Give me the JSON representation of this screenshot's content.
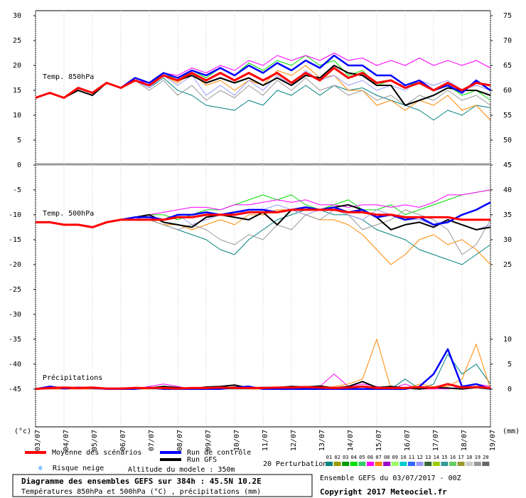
{
  "chart_data": {
    "type": "line",
    "panel_labels": [
      "Temp. 850hPa",
      "Temp. 500hPa",
      "Précipitations"
    ],
    "y_unit": "(°c)",
    "y2_unit": "(mm)",
    "categories": [
      "03/07",
      null,
      "04/07",
      null,
      "05/07",
      null,
      "06/07",
      null,
      "07/07",
      null,
      "08/07",
      null,
      "09/07",
      null,
      "10/07",
      null,
      "11/07",
      null,
      "12/07",
      null,
      "13/07",
      null,
      "14/07",
      null,
      "15/07",
      null,
      "16/07",
      null,
      "17/07",
      null,
      "18/07",
      null,
      "19/07"
    ],
    "ylim": [
      -52.6,
      31
    ],
    "yticks": [
      30,
      25,
      20,
      15,
      10,
      5,
      0,
      -5,
      -10,
      -15,
      -20,
      -25,
      -30,
      -35,
      -40,
      -45
    ],
    "y2lim": [
      -7.6,
      76
    ],
    "y2ticks": [
      75,
      70,
      65,
      60,
      55,
      50,
      45,
      40,
      35,
      30,
      25,
      10,
      5,
      0
    ],
    "grid": true,
    "series": [
      {
        "name": "Moyenne des scénarios",
        "color": "#ff0000",
        "values_850": [
          13.5,
          14.5,
          13.5,
          15.5,
          14.5,
          16.5,
          15.5,
          17,
          16,
          18,
          17,
          18.5,
          17,
          18.5,
          17,
          18.5,
          17,
          18.5,
          16.5,
          18.5,
          17,
          19.5,
          17.5,
          18.5,
          16.5,
          17,
          15.5,
          16.5,
          15,
          16.5,
          15,
          16.5,
          16
        ],
        "values_500": [
          -11.5,
          -11.5,
          -12,
          -12,
          -12.5,
          -11.5,
          -11,
          -11,
          -11,
          -11,
          -10.5,
          -10.5,
          -10,
          -10,
          -10,
          -9.5,
          -9.5,
          -9.5,
          -9,
          -9,
          -9,
          -9,
          -9.5,
          -9.5,
          -10,
          -10,
          -10.5,
          -10.5,
          -10.5,
          -10.5,
          -11,
          -11,
          -11
        ],
        "precip": [
          0,
          0.2,
          0.3,
          0.2,
          0.3,
          0.1,
          0.1,
          0.2,
          0.2,
          0.2,
          0.1,
          0.2,
          0.2,
          0.3,
          0.2,
          0.2,
          0.2,
          0.3,
          0.3,
          0.4,
          0.3,
          0.2,
          0.3,
          0.5,
          0.2,
          0.2,
          0.2,
          0.4,
          0.2,
          1,
          0.3,
          0.4,
          0.2
        ]
      },
      {
        "name": "Run de contrôle",
        "color": "#0000ff",
        "values_850": [
          13.5,
          14.5,
          13.5,
          15.5,
          14.5,
          16.5,
          15.5,
          17.5,
          16.5,
          18.5,
          17.5,
          19,
          18,
          19.5,
          18,
          20,
          18.5,
          20.5,
          19,
          21,
          19.5,
          22,
          20,
          20,
          18,
          18,
          16,
          17,
          15,
          16,
          14.5,
          17,
          15
        ],
        "values_500": [
          -11.5,
          -11.5,
          -12,
          -12,
          -12.5,
          -11.5,
          -11,
          -10.5,
          -10.5,
          -11,
          -10,
          -10,
          -9.5,
          -10,
          -9.5,
          -9,
          -9,
          -9.5,
          -9,
          -8.5,
          -9,
          -8.5,
          -9.5,
          -9,
          -10.5,
          -10,
          -11,
          -10.5,
          -12,
          -11.5,
          -10,
          -9,
          -7.5
        ],
        "precip": [
          0,
          0.5,
          0.1,
          0.3,
          0.2,
          0,
          0,
          0,
          0.3,
          0,
          0,
          0,
          0,
          0,
          0.3,
          0.5,
          0,
          0,
          0,
          0,
          0,
          0,
          0,
          0,
          0,
          0,
          0,
          0.5,
          3,
          8,
          0.5,
          1,
          0
        ]
      },
      {
        "name": "Run GFS",
        "color": "#000000",
        "values_850": [
          13.5,
          14.5,
          13.5,
          15,
          14,
          16.5,
          15.5,
          17,
          16,
          18,
          17,
          18,
          16.5,
          17.5,
          16.5,
          17.5,
          16,
          17.5,
          16,
          18,
          17.5,
          20,
          18.5,
          18,
          16,
          16,
          12,
          13,
          14,
          15.5,
          15,
          15,
          14
        ],
        "values_500": [
          -11.5,
          -11.5,
          -12,
          -12,
          -12.5,
          -11.5,
          -11,
          -10.5,
          -10,
          -11.5,
          -12,
          -12.5,
          -10.5,
          -10,
          -10.5,
          -11,
          -9.5,
          -12,
          -9,
          -9,
          -9,
          -8.5,
          -8,
          -9,
          -10.5,
          -13,
          -12,
          -11.5,
          -12.5,
          -11,
          -12,
          -13,
          -12.5
        ],
        "precip": [
          0,
          0.3,
          0.2,
          0.3,
          0.2,
          0,
          0,
          0.3,
          0.2,
          0.5,
          0.3,
          0,
          0.4,
          0.5,
          0.8,
          0.2,
          0.3,
          0.3,
          0.5,
          0.4,
          0.6,
          0.2,
          0.5,
          1.5,
          0.3,
          0.5,
          0.2,
          0,
          0.3,
          0.2,
          0,
          0.3,
          0
        ]
      }
    ],
    "perturbations": {
      "label": "20 Perturbations",
      "members": [
        {
          "name": "01",
          "color": "#008080",
          "values_850": [
            13.5,
            14.5,
            13.5,
            15.5,
            14.5,
            16.5,
            15.5,
            17,
            15.5,
            17.5,
            15,
            14,
            12,
            11.5,
            11,
            13,
            12,
            15,
            14,
            16,
            14,
            16,
            15,
            15.5,
            14,
            13,
            12,
            11,
            9,
            11,
            10,
            12,
            11.5
          ],
          "values_500": [
            -11.5,
            -11.5,
            -12,
            -12,
            -12.5,
            -11.5,
            -11,
            -11,
            -11,
            -12,
            -13,
            -14,
            -15,
            -17,
            -18,
            -15,
            -13,
            -11,
            -10,
            -9,
            -9,
            -10,
            -10,
            -11,
            -13,
            -14,
            -15,
            -17,
            -18,
            -19,
            -20,
            -18,
            -16
          ],
          "precip": [
            0,
            0,
            0,
            0,
            0,
            0,
            0,
            0,
            0,
            0,
            0,
            0,
            0,
            0,
            0,
            0,
            0,
            0,
            0,
            0,
            0,
            0,
            0,
            0,
            0,
            0,
            2,
            0,
            1,
            7,
            3,
            5,
            1
          ]
        },
        {
          "name": "02",
          "color": "#999900"
        },
        {
          "name": "03",
          "color": "#009900"
        },
        {
          "name": "04",
          "color": "#00dd00",
          "values_850": [
            13.5,
            14.5,
            13.5,
            15.5,
            14.5,
            16.5,
            15.5,
            17,
            16,
            18.5,
            17,
            19,
            17.5,
            19.5,
            18,
            20.5,
            19,
            21,
            20,
            22,
            20,
            21,
            18,
            19,
            16,
            17,
            15.5,
            17,
            15,
            16,
            14,
            15,
            13
          ],
          "values_500": [
            -11.5,
            -11.5,
            -12,
            -12,
            -12.5,
            -11.5,
            -11,
            -11,
            -10,
            -10,
            -11,
            -10,
            -9,
            -9,
            -8,
            -7,
            -6,
            -7,
            -6,
            -8,
            -9,
            -8,
            -7,
            -9,
            -9,
            -8,
            -10,
            -9,
            -8,
            -7,
            -6,
            -5.5,
            -5
          ]
        },
        {
          "name": "05",
          "color": "#33cc66"
        },
        {
          "name": "06",
          "color": "#ff00ff",
          "values_850": [
            13.5,
            14.5,
            13.5,
            15.5,
            14.5,
            16.5,
            15.5,
            17,
            16.5,
            18.5,
            18,
            19.5,
            18.5,
            20,
            19,
            21,
            20,
            22,
            21,
            22,
            21,
            22.5,
            21,
            21.5,
            20,
            21,
            20,
            21.5,
            20,
            21,
            20,
            21,
            19.5
          ],
          "values_500": [
            -11.5,
            -11.5,
            -12,
            -12,
            -12.5,
            -11.5,
            -11,
            -11,
            -10,
            -9.5,
            -9,
            -8.5,
            -8.5,
            -9,
            -8,
            -8,
            -7.5,
            -7,
            -7.5,
            -7,
            -8,
            -8,
            -8.5,
            -8,
            -8,
            -8.5,
            -8,
            -8.5,
            -7.5,
            -6,
            -6,
            -5.5,
            -5
          ],
          "precip": [
            0,
            0,
            0,
            0,
            0,
            0,
            0,
            0,
            0.5,
            1,
            0.5,
            0,
            0,
            0,
            0.5,
            0.3,
            0,
            0,
            0.5,
            0,
            0.5,
            3,
            0.5,
            1,
            0.5,
            0,
            1,
            0,
            0,
            0,
            0.5,
            1,
            0.5
          ]
        },
        {
          "name": "07",
          "color": "#ff8800",
          "values_850": [
            13.5,
            14.5,
            13.5,
            15.5,
            14.5,
            16.5,
            15.5,
            17,
            16,
            18,
            16.5,
            18.5,
            16,
            17,
            15,
            17,
            16,
            19,
            18,
            20,
            17.5,
            18,
            15,
            15,
            12,
            13,
            11,
            13,
            12,
            14,
            11,
            12,
            9
          ],
          "values_500": [
            -11.5,
            -11.5,
            -12,
            -12,
            -12.5,
            -11.5,
            -11,
            -11,
            -11,
            -12,
            -12,
            -13,
            -12,
            -11,
            -12,
            -10,
            -10,
            -9,
            -9,
            -10,
            -11,
            -11,
            -12,
            -14,
            -17,
            -20,
            -18,
            -15,
            -14,
            -16,
            -15,
            -17,
            -20
          ],
          "precip": [
            0,
            0,
            0,
            0,
            0,
            0,
            0,
            0,
            0,
            0.5,
            0,
            0,
            0,
            0,
            0.5,
            0,
            0,
            0,
            0,
            0.5,
            0,
            0.5,
            1,
            2,
            10,
            0,
            0,
            1,
            0.5,
            0.5,
            2,
            9,
            0
          ]
        },
        {
          "name": "08",
          "color": "#9900cc"
        },
        {
          "name": "09",
          "color": "#99ff66"
        },
        {
          "name": "10",
          "color": "#00cccc"
        },
        {
          "name": "11",
          "color": "#3366ff"
        },
        {
          "name": "12",
          "color": "#9999ff",
          "values_850": [
            13.5,
            14.5,
            13.5,
            15.5,
            14.5,
            16.5,
            15.5,
            17,
            15.5,
            18,
            16,
            18,
            14,
            16,
            14,
            17,
            15,
            18,
            16,
            19,
            17,
            18,
            16,
            17,
            15,
            16,
            15,
            17,
            16,
            17,
            15,
            16,
            15
          ],
          "values_500": [
            -11.5,
            -11.5,
            -12,
            -12,
            -12.5,
            -11.5,
            -11,
            -11,
            -10,
            -11,
            -10,
            -12,
            -11,
            -10,
            -10,
            -9,
            -9,
            -8,
            -9,
            -10,
            -9,
            -9,
            -10,
            -11,
            -9,
            -10,
            -11,
            -11,
            -12,
            -11,
            -12,
            -13,
            -12
          ]
        },
        {
          "name": "13",
          "color": "#336633"
        },
        {
          "name": "14",
          "color": "#99cc00"
        },
        {
          "name": "15",
          "color": "#339999"
        },
        {
          "name": "16",
          "color": "#66cc66"
        },
        {
          "name": "17",
          "color": "#999933"
        },
        {
          "name": "18",
          "color": "#cccccc"
        },
        {
          "name": "19",
          "color": "#999999",
          "values_850": [
            13.5,
            14.5,
            13.5,
            15.5,
            14.5,
            16.5,
            15.5,
            17,
            15,
            17,
            14,
            16,
            13,
            15,
            13.5,
            16,
            14,
            17,
            15,
            17.5,
            15,
            16,
            14,
            15,
            13,
            14,
            12,
            14,
            13,
            15,
            13,
            14,
            12
          ],
          "values_500": [
            -11.5,
            -11.5,
            -12,
            -12,
            -12.5,
            -11.5,
            -11,
            -11,
            -11,
            -12,
            -13,
            -12,
            -13,
            -15,
            -16,
            -14,
            -15,
            -12,
            -13,
            -10,
            -11,
            -9,
            -10,
            -13,
            -12,
            -11,
            -9,
            -10,
            -11,
            -13,
            -18,
            -16,
            -11
          ]
        },
        {
          "name": "20",
          "color": "#666666"
        }
      ]
    },
    "snow_risk": "Risque neige",
    "altitude": "Altitude du modele : 350m",
    "footer": {
      "title": "Diagramme des ensembles GEFS sur 384h : 45.5N 10.2E",
      "subtitle": "Températures 850hPa et 500hPa (°C) , précipitations (mm)",
      "run": "Ensemble GEFS du 03/07/2017 - 00Z",
      "copyright": "Copyright 2017 Meteociel.fr"
    }
  }
}
